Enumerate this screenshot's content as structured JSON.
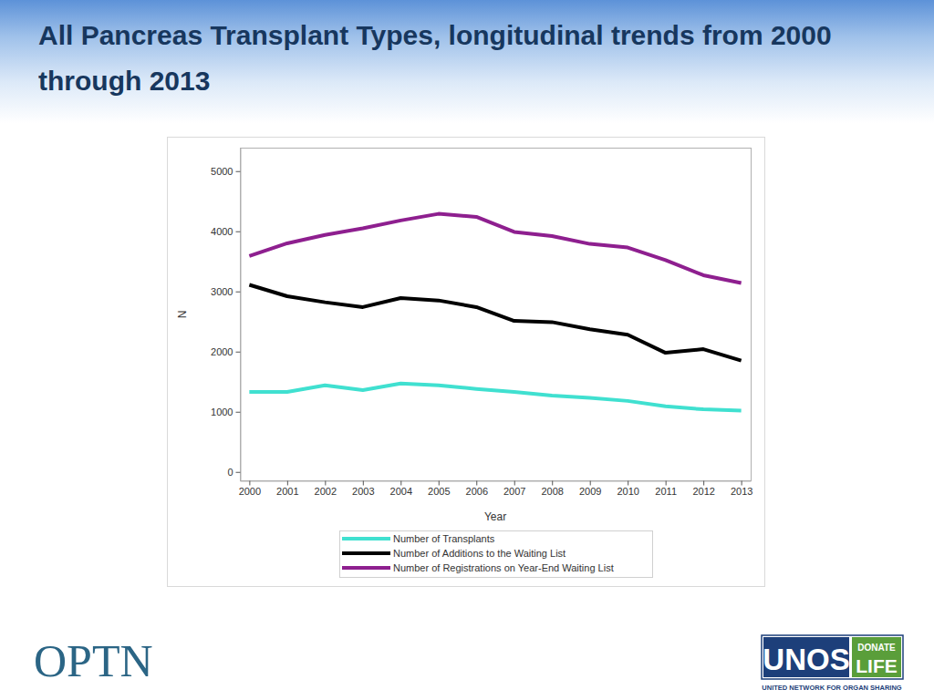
{
  "chart_data": {
    "type": "line",
    "title": "All Pancreas Transplant Types, longitudinal trends from 2000 through 2013",
    "x_label": "Year",
    "y_label": "N",
    "x": [
      2000,
      2001,
      2002,
      2003,
      2004,
      2005,
      2006,
      2007,
      2008,
      2009,
      2010,
      2011,
      2012,
      2013
    ],
    "xlim": [
      1999.75,
      2013.25
    ],
    "xticks": [
      2000,
      2001,
      2002,
      2003,
      2004,
      2005,
      2006,
      2007,
      2008,
      2009,
      2010,
      2011,
      2012,
      2013
    ],
    "ylim": [
      -140,
      5390
    ],
    "yticks": [
      0,
      1000,
      2000,
      3000,
      4000,
      5000
    ],
    "legend": "bottom",
    "series": [
      {
        "name": "Number of Transplants",
        "color": "#40e0d0",
        "values": [
          1330,
          1330,
          1440,
          1360,
          1470,
          1440,
          1380,
          1330,
          1270,
          1230,
          1180,
          1090,
          1040,
          1020
        ]
      },
      {
        "name": "Number of Additions to the Waiting List",
        "color": "#000000",
        "values": [
          3110,
          2920,
          2820,
          2740,
          2890,
          2850,
          2740,
          2510,
          2490,
          2370,
          2280,
          1980,
          2040,
          1850
        ]
      },
      {
        "name": "Number of Registrations on Year-End Waiting List",
        "color": "#8e1f8f",
        "values": [
          3590,
          3800,
          3940,
          4050,
          4180,
          4290,
          4240,
          3990,
          3920,
          3790,
          3730,
          3520,
          3270,
          3140
        ]
      }
    ]
  },
  "branding": {
    "optn": "OPTN",
    "unos": "UNOS",
    "donate": "DONATE",
    "life": "LIFE",
    "organization": "UNITED NETWORK FOR ORGAN SHARING"
  }
}
